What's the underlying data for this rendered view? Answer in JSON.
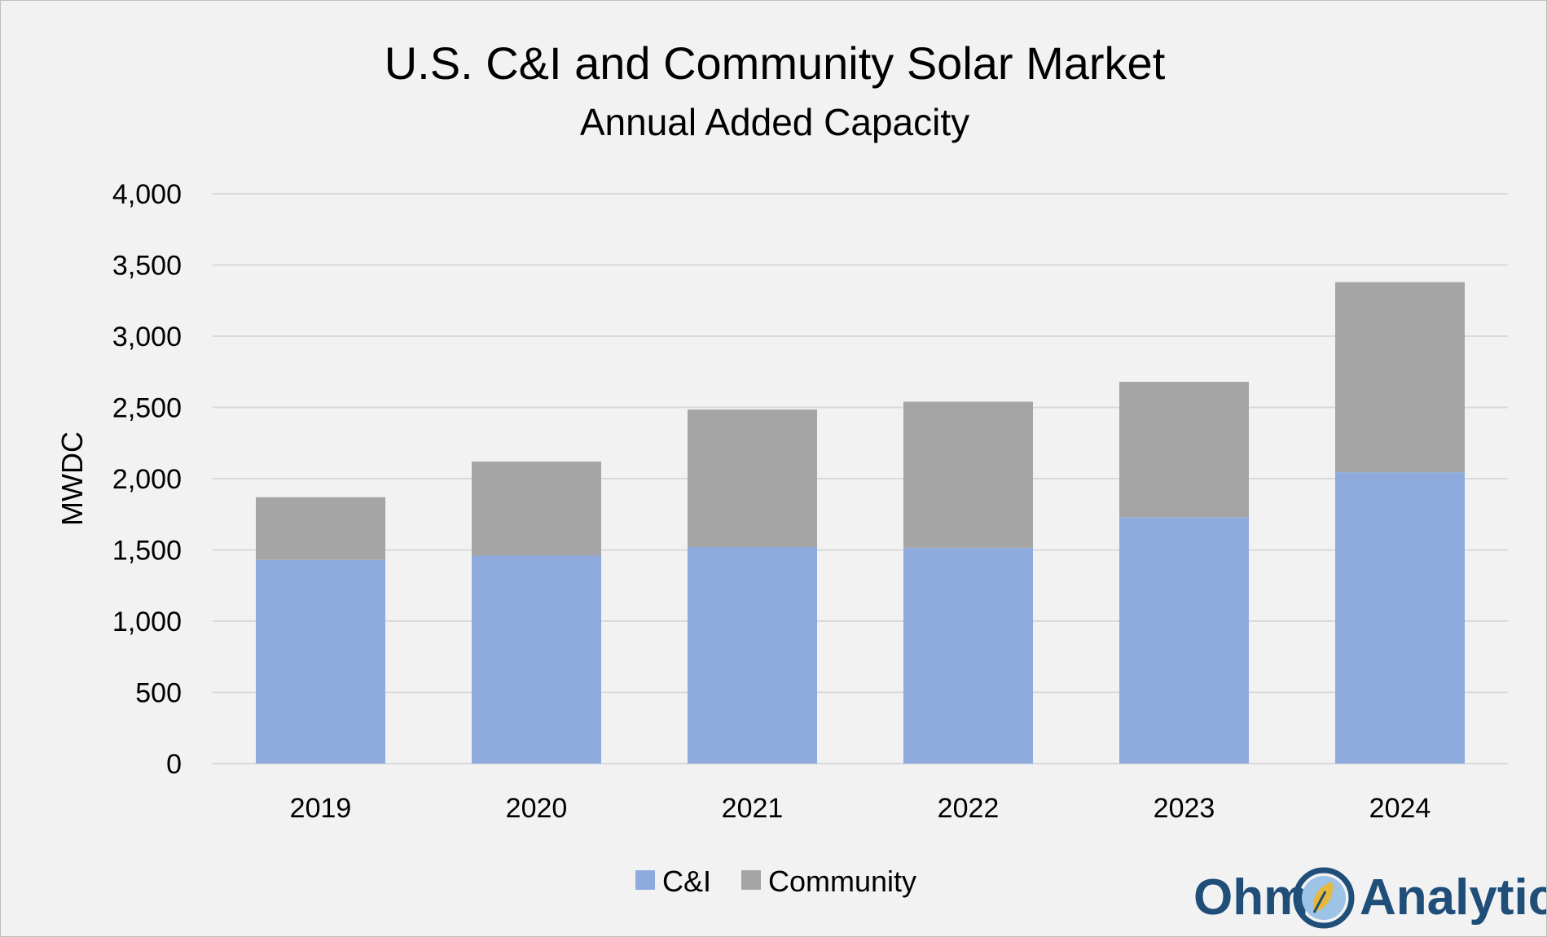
{
  "chart_data": {
    "type": "bar",
    "stacked": true,
    "title": "U.S. C&I and Community Solar Market",
    "subtitle": "Annual Added Capacity",
    "xlabel": "",
    "ylabel": "MWDC",
    "categories": [
      "2019",
      "2020",
      "2021",
      "2022",
      "2023",
      "2024"
    ],
    "series": [
      {
        "name": "C&I",
        "color": "#8faadc",
        "values": [
          1430,
          1460,
          1520,
          1515,
          1730,
          2045
        ]
      },
      {
        "name": "Community",
        "color": "#a5a5a5",
        "values": [
          440,
          660,
          965,
          1025,
          950,
          1335
        ]
      }
    ],
    "ylim": [
      0,
      4000
    ],
    "yticks": [
      0,
      500,
      1000,
      1500,
      2000,
      2500,
      3000,
      3500,
      4000
    ],
    "ytick_labels": [
      "0",
      "500",
      "1,000",
      "1,500",
      "2,000",
      "2,500",
      "3,000",
      "3,500",
      "4,000"
    ],
    "grid": true,
    "legend_position": "bottom"
  },
  "logo": {
    "text_left": "Ohm",
    "text_right": "Analytics",
    "color": "#1f4e79",
    "leaf_color": "#e8b83a",
    "circle_color": "#9dc3e6"
  }
}
